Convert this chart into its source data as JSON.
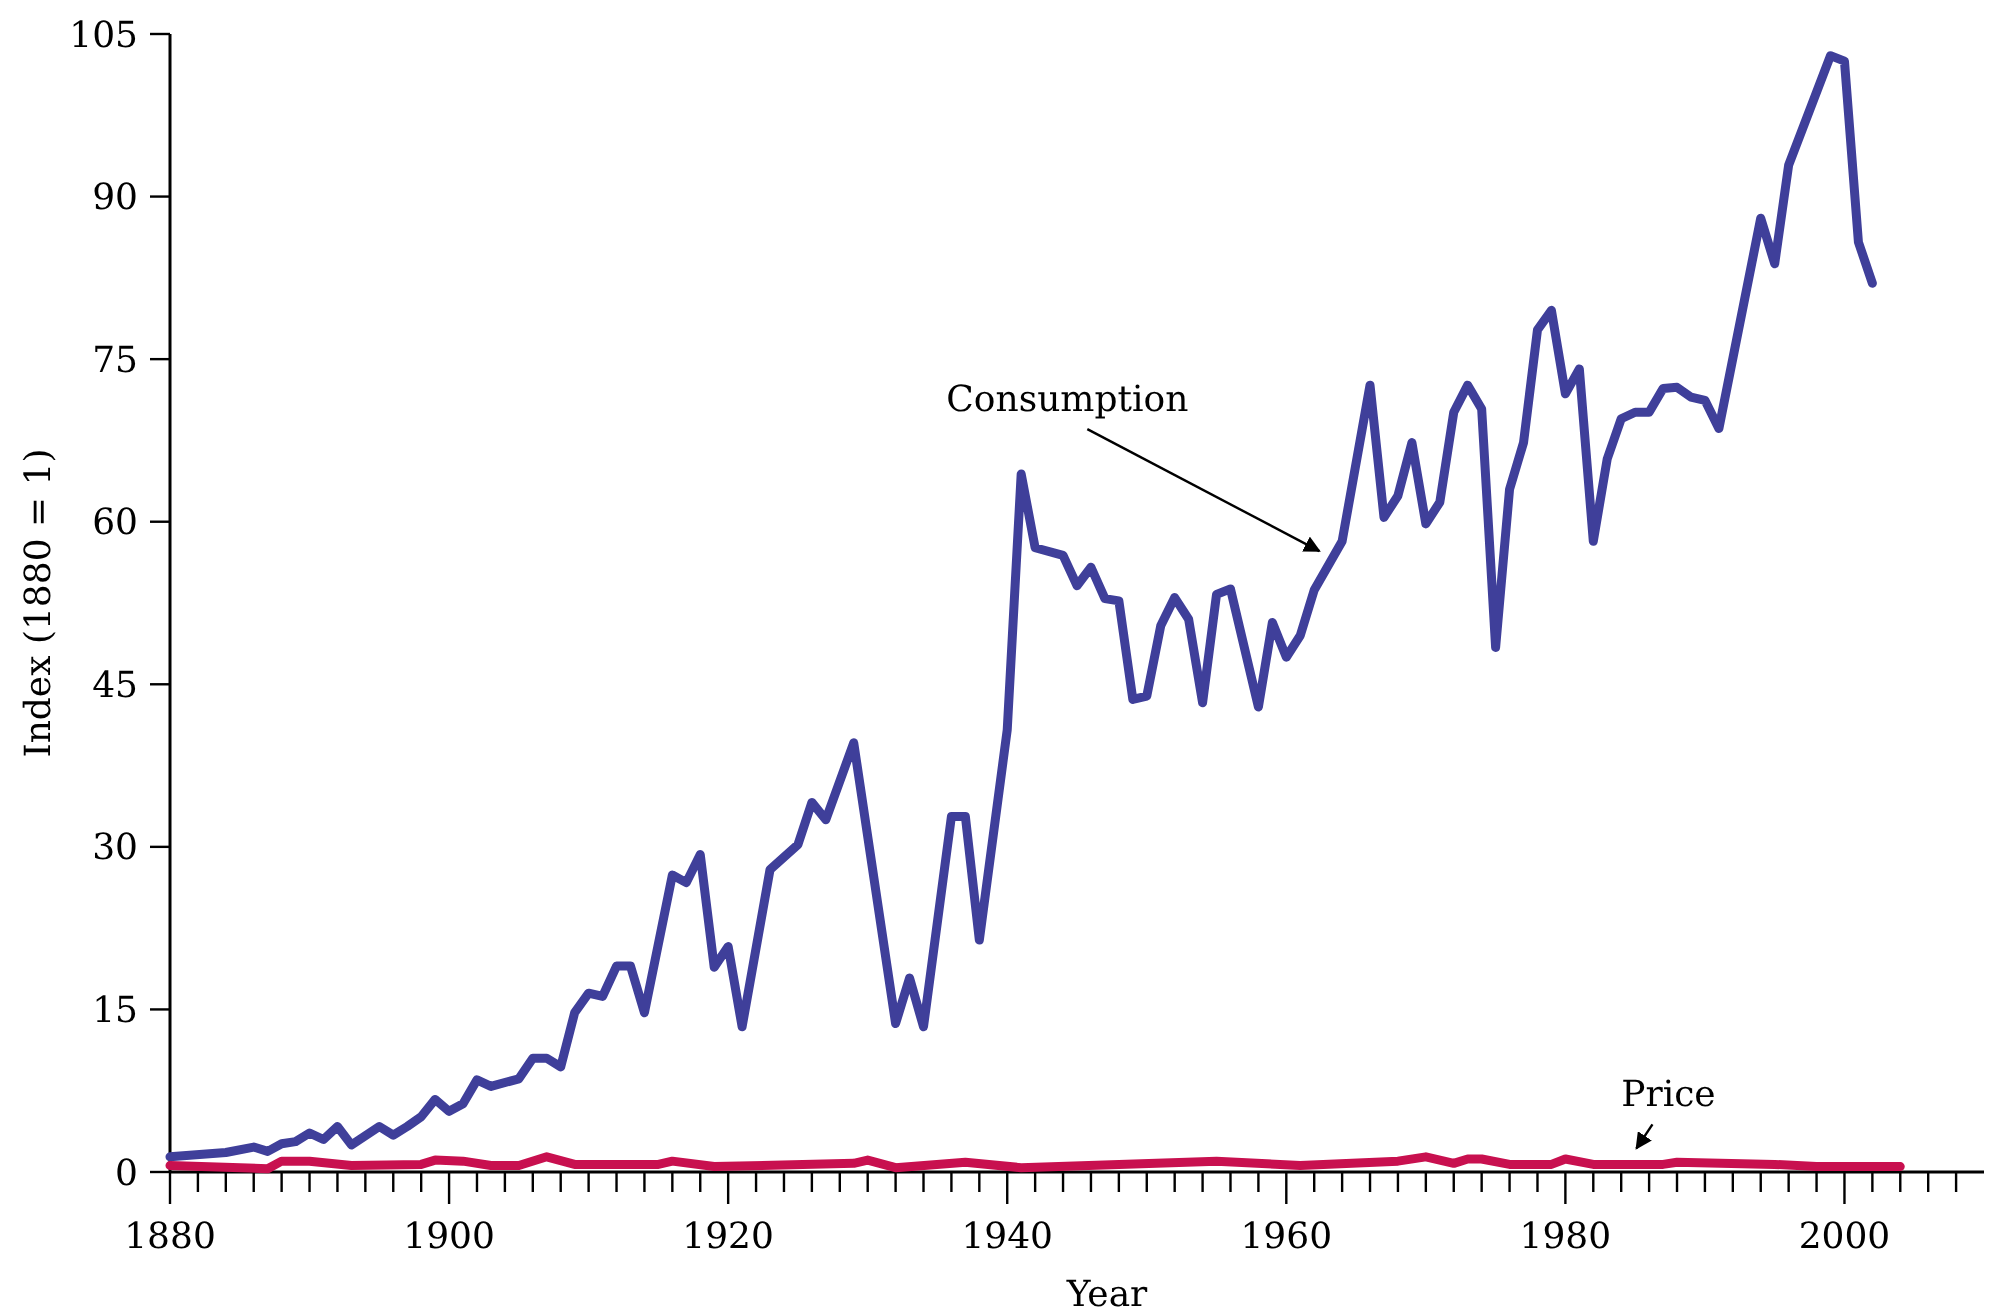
{
  "chart_data": {
    "type": "line",
    "xlabel": "Year",
    "ylabel": "Index (1880 = 1)",
    "xlim": [
      1880,
      2010
    ],
    "ylim": [
      0,
      105
    ],
    "xticks": [
      1880,
      {
        "value": 1882,
        "label": null
      },
      {
        "value": 1884,
        "label": null
      },
      {
        "value": 1886,
        "label": null
      },
      {
        "value": 1888,
        "label": null
      },
      {
        "value": 1890,
        "label": null
      },
      {
        "value": 1892,
        "label": null
      },
      {
        "value": 1894,
        "label": null
      },
      {
        "value": 1896,
        "label": null
      },
      {
        "value": 1898,
        "label": null
      },
      1900,
      {
        "value": 1902,
        "label": null
      },
      {
        "value": 1904,
        "label": null
      },
      {
        "value": 1906,
        "label": null
      },
      {
        "value": 1908,
        "label": null
      },
      {
        "value": 1910,
        "label": null
      },
      {
        "value": 1912,
        "label": null
      },
      {
        "value": 1914,
        "label": null
      },
      {
        "value": 1916,
        "label": null
      },
      {
        "value": 1918,
        "label": null
      },
      1920,
      {
        "value": 1922,
        "label": null
      },
      {
        "value": 1924,
        "label": null
      },
      {
        "value": 1926,
        "label": null
      },
      {
        "value": 1928,
        "label": null
      },
      {
        "value": 1930,
        "label": null
      },
      {
        "value": 1932,
        "label": null
      },
      {
        "value": 1934,
        "label": null
      },
      {
        "value": 1936,
        "label": null
      },
      {
        "value": 1938,
        "label": null
      },
      1940,
      {
        "value": 1942,
        "label": null
      },
      {
        "value": 1944,
        "label": null
      },
      {
        "value": 1946,
        "label": null
      },
      {
        "value": 1948,
        "label": null
      },
      {
        "value": 1950,
        "label": null
      },
      {
        "value": 1952,
        "label": null
      },
      {
        "value": 1954,
        "label": null
      },
      {
        "value": 1956,
        "label": null
      },
      {
        "value": 1958,
        "label": null
      },
      1960,
      {
        "value": 1962,
        "label": null
      },
      {
        "value": 1964,
        "label": null
      },
      {
        "value": 1966,
        "label": null
      },
      {
        "value": 1968,
        "label": null
      },
      {
        "value": 1970,
        "label": null
      },
      {
        "value": 1972,
        "label": null
      },
      {
        "value": 1974,
        "label": null
      },
      {
        "value": 1976,
        "label": null
      },
      {
        "value": 1978,
        "label": null
      },
      1980,
      {
        "value": 1982,
        "label": null
      },
      {
        "value": 1984,
        "label": null
      },
      {
        "value": 1986,
        "label": null
      },
      {
        "value": 1988,
        "label": null
      },
      {
        "value": 1990,
        "label": null
      },
      {
        "value": 1992,
        "label": null
      },
      {
        "value": 1994,
        "label": null
      },
      {
        "value": 1996,
        "label": null
      },
      {
        "value": 1998,
        "label": null
      },
      2000,
      {
        "value": 2002,
        "label": null
      },
      {
        "value": 2004,
        "label": null
      },
      {
        "value": 2006,
        "label": null
      },
      {
        "value": 2008,
        "label": null
      }
    ],
    "yticks": [
      0,
      15,
      30,
      45,
      60,
      75,
      90,
      105
    ],
    "grid": false,
    "marker": "none",
    "line_style": "solid",
    "series": [
      {
        "name": "Consumption",
        "color": "#3f3f9a",
        "x": [
          1880,
          1884,
          1886,
          1887,
          1888,
          1889,
          1890,
          1891,
          1892,
          1893,
          1895,
          1896,
          1897,
          1898,
          1899,
          1900,
          1901,
          1902,
          1903,
          1905,
          1906,
          1907,
          1908,
          1909,
          1910,
          1911,
          1912,
          1913,
          1914,
          1916,
          1917,
          1918,
          1919,
          1920,
          1921,
          1923,
          1925,
          1926,
          1927,
          1929,
          1932,
          1933,
          1934,
          1936,
          1937,
          1938,
          1940,
          1941,
          1942,
          1944,
          1945,
          1946,
          1947,
          1948,
          1949,
          1950,
          1951,
          1952,
          1953,
          1954,
          1955,
          1956,
          1958,
          1959,
          1960,
          1961,
          1962,
          1964,
          1966,
          1967,
          1968,
          1969,
          1970,
          1971,
          1972,
          1973,
          1974,
          1975,
          1976,
          1977,
          1978,
          1979,
          1980,
          1981,
          1982,
          1983,
          1984,
          1985,
          1986,
          1987,
          1988,
          1989,
          1990,
          1991,
          1994,
          1995,
          1996,
          1999,
          2000,
          2001,
          2002
        ],
        "values": [
          1.4,
          1.8,
          2.3,
          1.9,
          2.6,
          2.8,
          3.6,
          3.0,
          4.2,
          2.5,
          4.2,
          3.4,
          4.2,
          5.1,
          6.7,
          5.6,
          6.3,
          8.5,
          7.9,
          8.6,
          10.5,
          10.5,
          9.7,
          14.7,
          16.5,
          16.2,
          19.0,
          19.0,
          14.7,
          27.4,
          26.7,
          29.3,
          18.9,
          20.8,
          13.4,
          27.9,
          30.2,
          34.1,
          32.5,
          39.6,
          13.7,
          17.9,
          13.4,
          32.8,
          32.8,
          21.4,
          40.8,
          64.4,
          57.6,
          56.9,
          54.1,
          55.8,
          52.9,
          52.7,
          43.6,
          43.9,
          50.4,
          53.0,
          51.0,
          43.3,
          53.3,
          53.8,
          42.9,
          50.7,
          47.5,
          49.5,
          53.7,
          58.2,
          72.6,
          60.4,
          62.4,
          67.3,
          59.8,
          61.8,
          70.1,
          72.6,
          70.4,
          48.4,
          63.0,
          67.3,
          77.7,
          79.5,
          71.8,
          74.1,
          58.2,
          65.8,
          69.5,
          70.1,
          70.1,
          72.3,
          72.4,
          71.5,
          71.2,
          68.6,
          88.0,
          83.8,
          92.9,
          103.0,
          102.5,
          85.8,
          82.0
        ]
      },
      {
        "name": "Price",
        "color": "#c8104f",
        "x": [
          1880,
          1887,
          1888,
          1890,
          1893,
          1898,
          1899,
          1901,
          1903,
          1905,
          1907,
          1909,
          1915,
          1916,
          1919,
          1929,
          1930,
          1932,
          1937,
          1941,
          1955,
          1961,
          1968,
          1970,
          1972,
          1973,
          1974,
          1976,
          1979,
          1980,
          1982,
          1987,
          1988,
          1995,
          1998,
          2004
        ],
        "values": [
          0.6,
          0.3,
          1.0,
          1.0,
          0.6,
          0.7,
          1.1,
          1.0,
          0.6,
          0.6,
          1.4,
          0.7,
          0.7,
          1.0,
          0.5,
          0.8,
          1.1,
          0.4,
          0.9,
          0.4,
          1.0,
          0.6,
          1.0,
          1.4,
          0.8,
          1.2,
          1.2,
          0.7,
          0.7,
          1.2,
          0.7,
          0.7,
          0.9,
          0.7,
          0.5,
          0.5
        ]
      }
    ]
  }
}
